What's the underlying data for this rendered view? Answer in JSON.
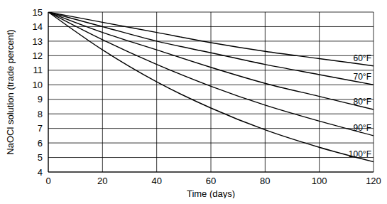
{
  "chart_data": {
    "type": "line",
    "xlabel": "Time (days)",
    "ylabel": "NaOCl solution (trade percent)",
    "x": [
      0,
      20,
      40,
      60,
      80,
      100,
      120
    ],
    "series": [
      {
        "name": "60°F",
        "color": "#000000",
        "values": [
          15,
          14.3,
          13.6,
          12.9,
          12.3,
          11.8,
          11.3
        ]
      },
      {
        "name": "70°F",
        "color": "#000000",
        "values": [
          15,
          14.0,
          13.0,
          12.2,
          11.4,
          10.7,
          10.0
        ]
      },
      {
        "name": "80°F",
        "color": "#000000",
        "values": [
          15,
          13.6,
          12.4,
          11.2,
          10.1,
          9.2,
          8.3
        ]
      },
      {
        "name": "90°F",
        "color": "#000000",
        "values": [
          15,
          13.1,
          11.4,
          9.9,
          8.6,
          7.5,
          6.5
        ]
      },
      {
        "name": "100°F",
        "color": "#000000",
        "values": [
          15,
          12.4,
          10.2,
          8.4,
          6.9,
          5.7,
          4.7
        ]
      }
    ],
    "xlim": [
      0,
      120
    ],
    "ylim": [
      4,
      15
    ],
    "xticks": [
      0,
      20,
      40,
      60,
      80,
      100,
      120
    ],
    "yticks": [
      4,
      5,
      6,
      7,
      8,
      9,
      10,
      11,
      12,
      13,
      14,
      15
    ],
    "grid": true
  }
}
